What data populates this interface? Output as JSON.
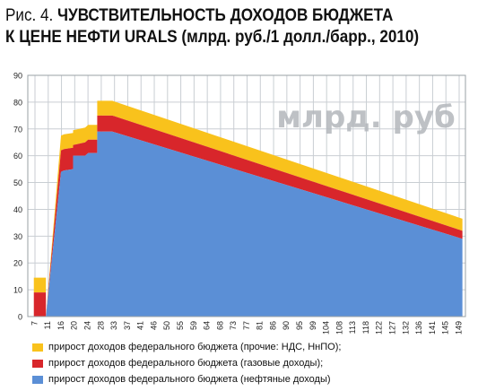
{
  "title": {
    "fig_label": "Рис. 4.",
    "line1": "ЧУВСТВИТЕЛЬНОСТЬ ДОХОДОВ БЮДЖЕТА",
    "line2": "К ЦЕНЕ НЕФТИ URALS (млрд. руб./1 долл./барр., 2010)"
  },
  "colors": {
    "oil": "#5b8fd6",
    "gas": "#d8262b",
    "other": "#f9c21c",
    "grid": "#c9ced3",
    "frame": "#9aa0a6",
    "watermark": "#b3b7bc"
  },
  "chart_data": {
    "type": "area",
    "stacked": true,
    "watermark": "млрд. руб",
    "x_tick_labels": [
      "7",
      "11",
      "16",
      "20",
      "24",
      "28",
      "33",
      "37",
      "41",
      "46",
      "50",
      "55",
      "59",
      "64",
      "68",
      "73",
      "77",
      "81",
      "86",
      "90",
      "95",
      "99",
      "104",
      "108",
      "113",
      "118",
      "122",
      "127",
      "132",
      "136",
      "141",
      "145",
      "149"
    ],
    "x": [
      7,
      11,
      11,
      16,
      17,
      20,
      20,
      24,
      25,
      28,
      28,
      33,
      149
    ],
    "ylim": [
      0,
      90
    ],
    "y_ticks": [
      0,
      10,
      20,
      30,
      40,
      50,
      60,
      70,
      80,
      90
    ],
    "grid": true,
    "legend_position": "bottom",
    "series": [
      {
        "key": "oil",
        "name": "прирост доходов федерального бюджета (нефтяные доходы)",
        "values": [
          0,
          0,
          0,
          54,
          54.5,
          55,
          60,
          60,
          61,
          61,
          69,
          69,
          29
        ]
      },
      {
        "key": "gas",
        "name": "прирост доходов федерального бюджета (газовые доходы);",
        "values": [
          9,
          9,
          0,
          8,
          8,
          8,
          4,
          5,
          5,
          5,
          6,
          6,
          3
        ]
      },
      {
        "key": "other",
        "name": "прирост доходов федерального бюджета (прочие: НДС, НнПО);",
        "values": [
          5.5,
          5.5,
          0,
          5.5,
          5.5,
          5.5,
          5.5,
          5.5,
          5.5,
          5.5,
          5.5,
          5.5,
          4.5
        ]
      }
    ]
  }
}
